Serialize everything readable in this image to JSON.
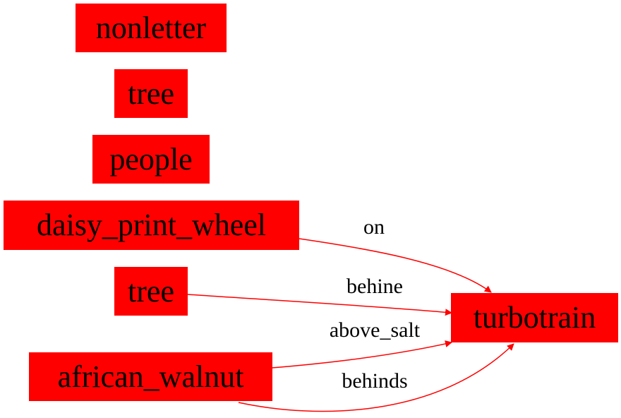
{
  "colors": {
    "node_fill": "#ff0000",
    "edge_stroke": "#ff0000",
    "text": "#000000"
  },
  "nodes": {
    "nonletter": "nonletter",
    "tree_1": "tree",
    "people": "people",
    "daisy_print_wheel": "daisy_print_wheel",
    "tree_2": "tree",
    "african_walnut": "african_walnut",
    "turbotrain": "turbotrain"
  },
  "edges": [
    {
      "from": "daisy_print_wheel",
      "to": "turbotrain",
      "label": "on"
    },
    {
      "from": "tree_2",
      "to": "turbotrain",
      "label": "behine"
    },
    {
      "from": "african_walnut",
      "to": "turbotrain",
      "label": "above_salt"
    },
    {
      "from": "african_walnut",
      "to": "turbotrain",
      "label": "behinds"
    }
  ]
}
